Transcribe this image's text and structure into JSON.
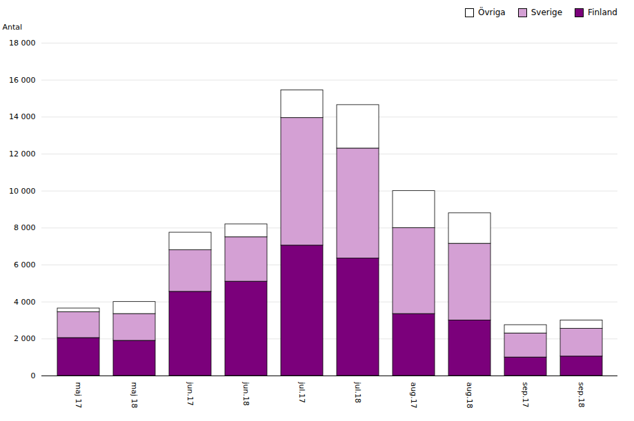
{
  "chart_data": {
    "type": "bar",
    "stacked": true,
    "ylabel": "Antal",
    "categories": [
      "maj 17",
      "maj 18",
      "jun.17",
      "jun.18",
      "jul.17",
      "jul.18",
      "aug.17",
      "aug.18",
      "sep.17",
      "sep.18"
    ],
    "series": [
      {
        "name": "Finland",
        "color": "#7B007B",
        "values": [
          2050,
          1900,
          4550,
          5100,
          7050,
          6350,
          3350,
          3000,
          1000,
          1050
        ]
      },
      {
        "name": "Sverige",
        "color": "#D4A0D4",
        "values": [
          1400,
          1450,
          2250,
          2400,
          6900,
          5950,
          4650,
          4150,
          1300,
          1500
        ]
      },
      {
        "name": "Övriga",
        "color": "#FFFFFF",
        "values": [
          200,
          650,
          950,
          700,
          1500,
          2350,
          2000,
          1650,
          450,
          450
        ]
      }
    ],
    "ylim": [
      0,
      18000
    ],
    "yticks": [
      0,
      {
        "value": 2000,
        "label": "2 000"
      },
      {
        "value": 4000,
        "label": "4 000"
      },
      {
        "value": 6000,
        "label": "6 000"
      },
      {
        "value": 8000,
        "label": "8 000"
      },
      {
        "value": 10000,
        "label": "10 000"
      },
      {
        "value": 12000,
        "label": "12 000"
      },
      {
        "value": 14000,
        "label": "14 000"
      },
      {
        "value": 16000,
        "label": "16 000"
      },
      {
        "value": 18000,
        "label": "18 000"
      }
    ],
    "grid": true,
    "legend": "upper right"
  }
}
